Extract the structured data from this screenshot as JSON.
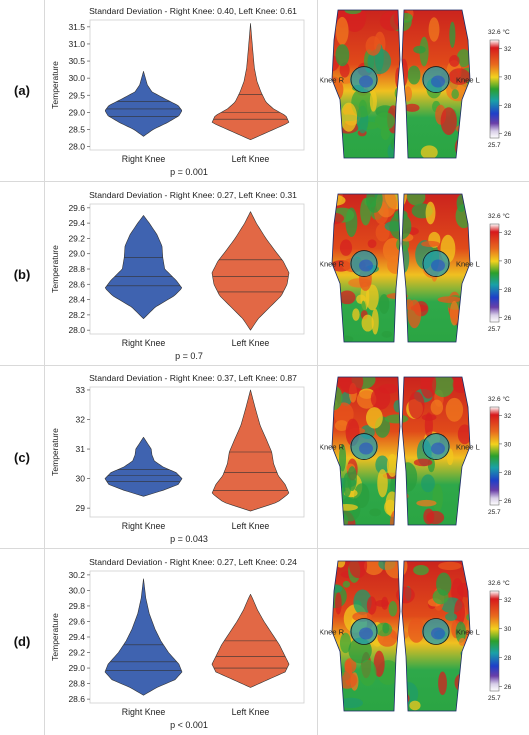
{
  "rows": [
    {
      "label": "(a)",
      "p_value": "p = 0.001",
      "chart_data": {
        "type": "violin",
        "title": "Standard Deviation - Right Knee: 0.40, Left Knee: 0.61",
        "xlabel": "",
        "ylabel": "Temperature",
        "categories": [
          "Right Knee",
          "Left Knee"
        ],
        "ylim": [
          27.9,
          31.7
        ],
        "yticks": [
          "28.0",
          "28.5",
          "29.0",
          "29.5",
          "30.0",
          "30.5",
          "31.0",
          "31.5"
        ],
        "colors": [
          "#3f63b0",
          "#e26845"
        ],
        "series": [
          {
            "name": "Right Knee",
            "min": 28.3,
            "max": 30.2,
            "quartiles": [
              28.88,
              29.1,
              29.32
            ],
            "profile": [
              [
                28.3,
                0.0
              ],
              [
                28.5,
                0.25
              ],
              [
                28.7,
                0.62
              ],
              [
                28.9,
                0.92
              ],
              [
                29.05,
                1.0
              ],
              [
                29.2,
                0.9
              ],
              [
                29.4,
                0.55
              ],
              [
                29.6,
                0.22
              ],
              [
                29.8,
                0.1
              ],
              [
                30.0,
                0.05
              ],
              [
                30.2,
                0.0
              ]
            ]
          },
          {
            "name": "Left Knee",
            "min": 28.2,
            "max": 31.6,
            "quartiles": [
              28.8,
              29.0,
              29.52
            ],
            "profile": [
              [
                28.2,
                0.0
              ],
              [
                28.5,
                0.6
              ],
              [
                28.7,
                1.0
              ],
              [
                28.9,
                0.92
              ],
              [
                29.1,
                0.6
              ],
              [
                29.3,
                0.4
              ],
              [
                29.6,
                0.27
              ],
              [
                29.9,
                0.17
              ],
              [
                30.3,
                0.1
              ],
              [
                30.8,
                0.06
              ],
              [
                31.2,
                0.03
              ],
              [
                31.6,
                0.0
              ]
            ]
          }
        ]
      },
      "thermal": {
        "label_right": "Knee R",
        "label_left": "Knee L",
        "colorbar_max": "32.6 °C",
        "colorbar_min": "25.7",
        "colorbar_ticks": [
          "32",
          "30",
          "28",
          "26"
        ]
      }
    },
    {
      "label": "(b)",
      "p_value": "p = 0.7",
      "chart_data": {
        "type": "violin",
        "title": "Standard Deviation - Right Knee: 0.27, Left Knee: 0.31",
        "xlabel": "",
        "ylabel": "Temperature",
        "categories": [
          "Right Knee",
          "Left Knee"
        ],
        "ylim": [
          27.95,
          29.65
        ],
        "yticks": [
          "28.0",
          "28.2",
          "28.4",
          "28.6",
          "28.8",
          "29.0",
          "29.2",
          "29.4",
          "29.6"
        ],
        "colors": [
          "#3f63b0",
          "#e26845"
        ],
        "series": [
          {
            "name": "Right Knee",
            "min": 28.15,
            "max": 29.5,
            "quartiles": [
              28.58,
              28.7,
              28.95
            ],
            "profile": [
              [
                28.15,
                0.0
              ],
              [
                28.3,
                0.3
              ],
              [
                28.45,
                0.8
              ],
              [
                28.55,
                1.0
              ],
              [
                28.65,
                0.85
              ],
              [
                28.8,
                0.55
              ],
              [
                28.95,
                0.5
              ],
              [
                29.1,
                0.48
              ],
              [
                29.25,
                0.35
              ],
              [
                29.4,
                0.15
              ],
              [
                29.5,
                0.0
              ]
            ]
          },
          {
            "name": "Left Knee",
            "min": 28.0,
            "max": 29.55,
            "quartiles": [
              28.5,
              28.7,
              28.92
            ],
            "profile": [
              [
                28.0,
                0.0
              ],
              [
                28.15,
                0.2
              ],
              [
                28.3,
                0.5
              ],
              [
                28.45,
                0.8
              ],
              [
                28.6,
                0.95
              ],
              [
                28.75,
                1.0
              ],
              [
                28.9,
                0.85
              ],
              [
                29.05,
                0.62
              ],
              [
                29.2,
                0.4
              ],
              [
                29.4,
                0.15
              ],
              [
                29.55,
                0.0
              ]
            ]
          }
        ]
      },
      "thermal": {
        "label_right": "Knee R",
        "label_left": "Knee L",
        "colorbar_max": "32.6 °C",
        "colorbar_min": "25.7",
        "colorbar_ticks": [
          "32",
          "30",
          "28",
          "26"
        ]
      }
    },
    {
      "label": "(c)",
      "p_value": "p = 0.043",
      "chart_data": {
        "type": "violin",
        "title": "Standard Deviation - Right Knee: 0.37, Left Knee: 0.87",
        "xlabel": "",
        "ylabel": "Temperature",
        "categories": [
          "Right Knee",
          "Left Knee"
        ],
        "ylim": [
          28.7,
          33.1
        ],
        "yticks": [
          "29",
          "30",
          "31",
          "32",
          "33"
        ],
        "colors": [
          "#3f63b0",
          "#e26845"
        ],
        "series": [
          {
            "name": "Right Knee",
            "min": 29.4,
            "max": 31.4,
            "quartiles": [
              29.9,
              30.1,
              30.3
            ],
            "profile": [
              [
                29.4,
                0.0
              ],
              [
                29.6,
                0.5
              ],
              [
                29.8,
                0.9
              ],
              [
                30.0,
                1.0
              ],
              [
                30.2,
                0.85
              ],
              [
                30.4,
                0.5
              ],
              [
                30.6,
                0.28
              ],
              [
                30.8,
                0.22
              ],
              [
                31.0,
                0.2
              ],
              [
                31.2,
                0.1
              ],
              [
                31.4,
                0.0
              ]
            ]
          },
          {
            "name": "Left Knee",
            "min": 28.9,
            "max": 33.0,
            "quartiles": [
              29.6,
              30.2,
              30.9
            ],
            "profile": [
              [
                28.9,
                0.0
              ],
              [
                29.2,
                0.7
              ],
              [
                29.5,
                1.0
              ],
              [
                29.8,
                0.9
              ],
              [
                30.1,
                0.72
              ],
              [
                30.5,
                0.6
              ],
              [
                30.9,
                0.55
              ],
              [
                31.3,
                0.42
              ],
              [
                31.8,
                0.25
              ],
              [
                32.4,
                0.12
              ],
              [
                33.0,
                0.0
              ]
            ]
          }
        ]
      },
      "thermal": {
        "label_right": "Knee R",
        "label_left": "Knee L",
        "colorbar_max": "32.6 °C",
        "colorbar_min": "25.7",
        "colorbar_ticks": [
          "32",
          "30",
          "28",
          "26"
        ]
      }
    },
    {
      "label": "(d)",
      "p_value": "p < 0.001",
      "chart_data": {
        "type": "violin",
        "title": "Standard Deviation - Right Knee: 0.27, Left Knee: 0.24",
        "xlabel": "",
        "ylabel": "Temperature",
        "categories": [
          "Right Knee",
          "Left Knee"
        ],
        "ylim": [
          28.55,
          30.25
        ],
        "yticks": [
          "28.6",
          "28.8",
          "29.0",
          "29.2",
          "29.4",
          "29.6",
          "29.8",
          "30.0",
          "30.2"
        ],
        "colors": [
          "#3f63b0",
          "#e26845"
        ],
        "series": [
          {
            "name": "Right Knee",
            "min": 28.65,
            "max": 30.15,
            "quartiles": [
              28.97,
              29.08,
              29.3
            ],
            "profile": [
              [
                28.65,
                0.0
              ],
              [
                28.75,
                0.35
              ],
              [
                28.85,
                0.82
              ],
              [
                28.95,
                1.0
              ],
              [
                29.05,
                0.92
              ],
              [
                29.2,
                0.65
              ],
              [
                29.35,
                0.45
              ],
              [
                29.5,
                0.3
              ],
              [
                29.7,
                0.15
              ],
              [
                29.9,
                0.06
              ],
              [
                30.15,
                0.0
              ]
            ]
          },
          {
            "name": "Left Knee",
            "min": 28.75,
            "max": 29.95,
            "quartiles": [
              29.0,
              29.15,
              29.35
            ],
            "profile": [
              [
                28.75,
                0.0
              ],
              [
                28.85,
                0.45
              ],
              [
                28.95,
                0.9
              ],
              [
                29.05,
                1.0
              ],
              [
                29.15,
                0.9
              ],
              [
                29.3,
                0.75
              ],
              [
                29.45,
                0.55
              ],
              [
                29.6,
                0.35
              ],
              [
                29.75,
                0.18
              ],
              [
                29.9,
                0.05
              ],
              [
                29.95,
                0.0
              ]
            ]
          }
        ]
      },
      "thermal": {
        "label_right": "Knee R",
        "label_left": "Knee L",
        "colorbar_max": "32.6 °C",
        "colorbar_min": "25.7",
        "colorbar_ticks": [
          "32",
          "30",
          "28",
          "26"
        ]
      }
    }
  ]
}
